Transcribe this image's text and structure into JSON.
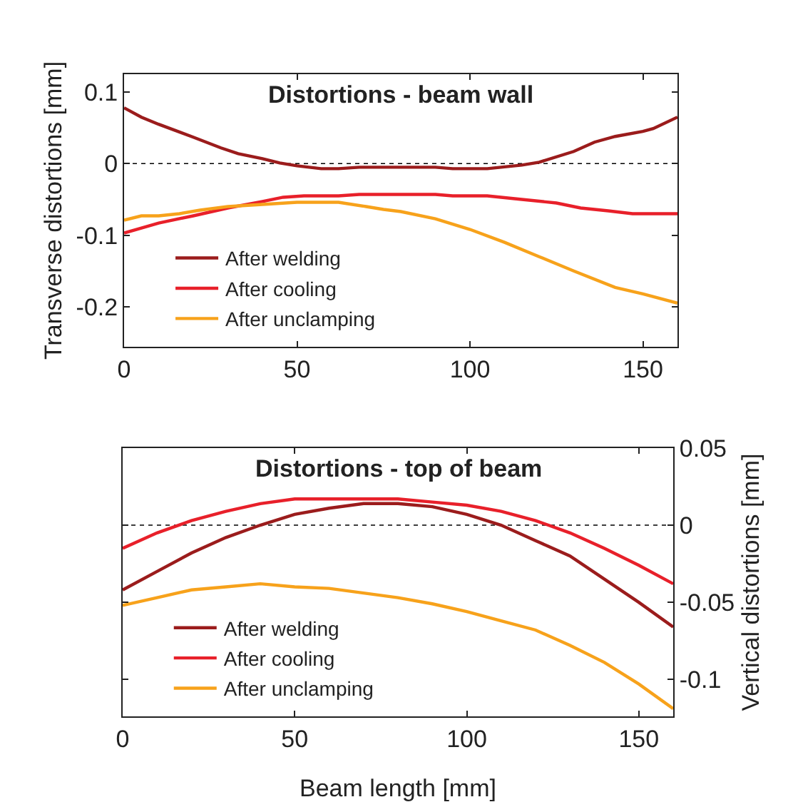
{
  "chart_data": [
    {
      "type": "line",
      "title": "Distortions - beam wall",
      "ylabel": "Transverse distortions [mm]",
      "xlim": [
        0,
        160
      ],
      "xticks": [
        0,
        50,
        100,
        150
      ],
      "ylim": [
        -0.256,
        0.125
      ],
      "yticks": [
        -0.2,
        -0.1,
        0,
        0.1
      ],
      "grid": false,
      "legend": "bottom left",
      "ref_lines": [
        {
          "axis": "y",
          "value": 0,
          "color": "#000000",
          "line_style": "dotted"
        }
      ],
      "series": [
        {
          "name": "After welding",
          "color": "#9b1c1c",
          "x": [
            0,
            5,
            10,
            20,
            28,
            33,
            40,
            45,
            50,
            57,
            62,
            68,
            90,
            95,
            105,
            115,
            120,
            130,
            136,
            142,
            150,
            153,
            160
          ],
          "values": [
            0.078,
            0.065,
            0.055,
            0.037,
            0.022,
            0.014,
            0.007,
            0.001,
            -0.003,
            -0.007,
            -0.007,
            -0.005,
            -0.005,
            -0.007,
            -0.007,
            -0.002,
            0.002,
            0.017,
            0.03,
            0.038,
            0.045,
            0.049,
            0.065
          ]
        },
        {
          "name": "After cooling",
          "color": "#e8202a",
          "x": [
            0,
            5,
            10,
            20,
            30,
            40,
            46,
            52,
            62,
            68,
            90,
            95,
            105,
            115,
            125,
            132,
            140,
            147,
            160
          ],
          "values": [
            -0.097,
            -0.09,
            -0.083,
            -0.073,
            -0.062,
            -0.053,
            -0.047,
            -0.045,
            -0.045,
            -0.043,
            -0.043,
            -0.045,
            -0.045,
            -0.05,
            -0.055,
            -0.062,
            -0.066,
            -0.07,
            -0.07
          ]
        },
        {
          "name": "After unclamping",
          "color": "#f7a21b",
          "x": [
            0,
            5,
            10,
            16,
            22,
            30,
            40,
            50,
            62,
            70,
            75,
            80,
            90,
            100,
            110,
            120,
            130,
            142,
            150,
            160
          ],
          "values": [
            -0.079,
            -0.073,
            -0.073,
            -0.07,
            -0.065,
            -0.06,
            -0.057,
            -0.054,
            -0.054,
            -0.06,
            -0.064,
            -0.067,
            -0.077,
            -0.092,
            -0.11,
            -0.13,
            -0.15,
            -0.173,
            -0.182,
            -0.195
          ]
        }
      ]
    },
    {
      "type": "line",
      "title": "Distortions - top of beam",
      "xlabel": "Beam length [mm]",
      "y2label": "Vertical distortions [mm]",
      "xlim": [
        0,
        160
      ],
      "xticks": [
        0,
        50,
        100,
        150
      ],
      "y2lim": [
        -0.124,
        0.05
      ],
      "y2ticks": [
        -0.1,
        -0.05,
        0,
        0.05
      ],
      "grid": false,
      "legend": "bottom left",
      "ref_lines": [
        {
          "axis": "y2",
          "value": 0,
          "color": "#000000",
          "line_style": "dotted"
        }
      ],
      "series": [
        {
          "name": "After welding",
          "color": "#9b1c1c",
          "axis": "y2",
          "x": [
            0,
            10,
            20,
            30,
            40,
            50,
            60,
            70,
            80,
            90,
            100,
            110,
            120,
            130,
            140,
            150,
            160
          ],
          "values": [
            -0.042,
            -0.03,
            -0.018,
            -0.008,
            0,
            0.007,
            0.011,
            0.014,
            0.014,
            0.012,
            0.007,
            0,
            -0.01,
            -0.02,
            -0.035,
            -0.05,
            -0.066
          ]
        },
        {
          "name": "After cooling",
          "color": "#e8202a",
          "axis": "y2",
          "x": [
            0,
            10,
            20,
            30,
            40,
            50,
            60,
            70,
            80,
            90,
            100,
            110,
            120,
            130,
            140,
            150,
            160
          ],
          "values": [
            -0.015,
            -0.005,
            0.003,
            0.009,
            0.014,
            0.017,
            0.017,
            0.017,
            0.017,
            0.015,
            0.013,
            0.009,
            0.003,
            -0.005,
            -0.015,
            -0.026,
            -0.038
          ]
        },
        {
          "name": "After unclamping",
          "color": "#f7a21b",
          "axis": "y2",
          "x": [
            0,
            10,
            20,
            30,
            40,
            50,
            60,
            70,
            80,
            90,
            100,
            110,
            120,
            130,
            140,
            150,
            160
          ],
          "values": [
            -0.052,
            -0.047,
            -0.042,
            -0.04,
            -0.038,
            -0.04,
            -0.041,
            -0.044,
            -0.047,
            -0.051,
            -0.056,
            -0.062,
            -0.068,
            -0.078,
            -0.089,
            -0.103,
            -0.119
          ]
        }
      ]
    }
  ]
}
